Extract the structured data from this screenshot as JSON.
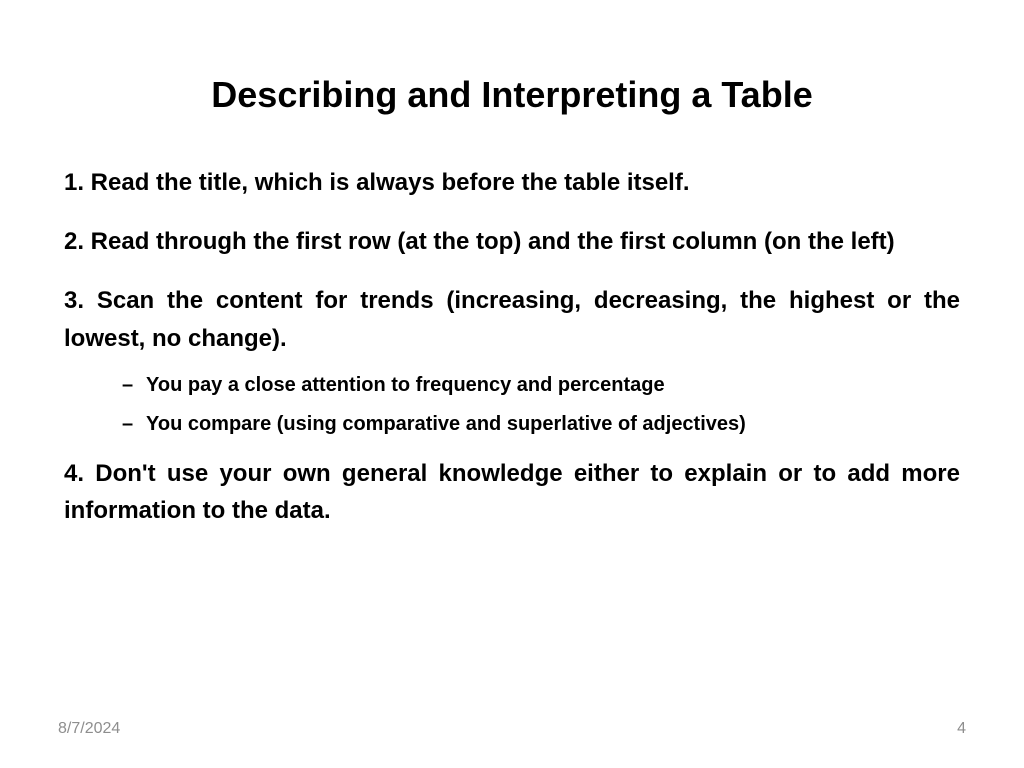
{
  "title": "Describing and Interpreting a Table",
  "points": {
    "p1": "1. Read the title, which is always before the table itself.",
    "p2": "2. Read through the first row (at the top) and the first column (on the left)",
    "p3": "3. Scan the content for trends (increasing, decreasing, the highest or the lowest, no change).",
    "p3a": "You pay a close attention to frequency and percentage",
    "p3b": "You compare (using comparative and superlative of adjectives)",
    "p4": "4. Don't use your own general knowledge either to explain or to add more information to the data."
  },
  "footer": {
    "date": "8/7/2024",
    "page": "4"
  }
}
